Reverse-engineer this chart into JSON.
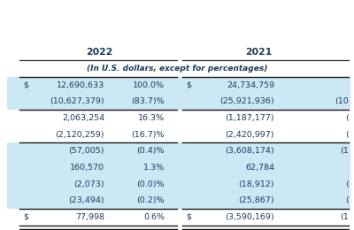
{
  "subtitle_row": "(In U.S. dollars, except for percentages)",
  "rows": [
    {
      "col1_prefix": "$",
      "col1": "12,690,633",
      "col2": "100.0%",
      "col3_prefix": "$",
      "col3": "24,734,759",
      "col4": "",
      "highlight": true,
      "top_border": true,
      "bottom_border": false
    },
    {
      "col1_prefix": "",
      "col1": "(10,627,379)",
      "col2": "(83.7)%",
      "col3_prefix": "",
      "col3": "(25,921,936)",
      "col4": "(10",
      "highlight": true,
      "top_border": false,
      "bottom_border": true
    },
    {
      "col1_prefix": "",
      "col1": "2,063,254",
      "col2": "16.3%",
      "col3_prefix": "",
      "col3": "(1,187,177)",
      "col4": "(",
      "highlight": false,
      "top_border": false,
      "bottom_border": false
    },
    {
      "col1_prefix": "",
      "col1": "(2,120,259)",
      "col2": "(16.7)%",
      "col3_prefix": "",
      "col3": "(2,420,997)",
      "col4": "(",
      "highlight": false,
      "top_border": false,
      "bottom_border": true
    },
    {
      "col1_prefix": "",
      "col1": "(57,005)",
      "col2": "(0.4)%",
      "col3_prefix": "",
      "col3": "(3,608,174)",
      "col4": "(1",
      "highlight": true,
      "top_border": false,
      "bottom_border": false
    },
    {
      "col1_prefix": "",
      "col1": "160,570",
      "col2": "1.3%",
      "col3_prefix": "",
      "col3": "62,784",
      "col4": "",
      "highlight": true,
      "top_border": false,
      "bottom_border": false
    },
    {
      "col1_prefix": "",
      "col1": "(2,073)",
      "col2": "(0.0)%",
      "col3_prefix": "",
      "col3": "(18,912)",
      "col4": "(",
      "highlight": true,
      "top_border": false,
      "bottom_border": false
    },
    {
      "col1_prefix": "",
      "col1": "(23,494)",
      "col2": "(0.2)%",
      "col3_prefix": "",
      "col3": "(25,867)",
      "col4": "(",
      "highlight": true,
      "top_border": false,
      "bottom_border": false
    },
    {
      "col1_prefix": "$",
      "col1": "77,998",
      "col2": "0.6%",
      "col3_prefix": "$",
      "col3": "(3,590,169)",
      "col4": "(1",
      "highlight": false,
      "top_border": true,
      "bottom_border": true
    }
  ],
  "bg_color": "#ffffff",
  "highlight_color": "#cce8f4",
  "text_color": "#1a3a5c"
}
